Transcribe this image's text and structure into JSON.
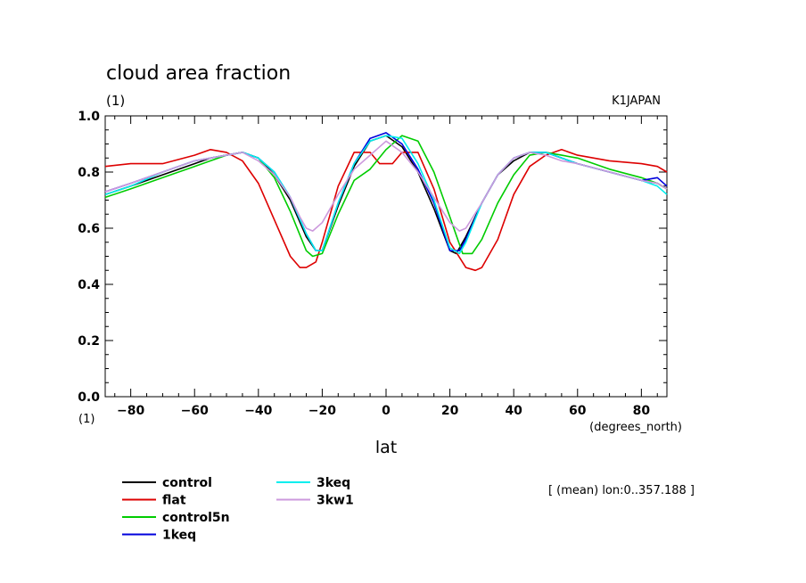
{
  "chart_data": {
    "type": "line",
    "title": "cloud area fraction",
    "y_unit": "(1)",
    "x_unit_corner": "(1)",
    "x_unit": "(degrees_north)",
    "xlabel": "lat",
    "organization": "K1JAPAN",
    "annotation": "[ (mean) lon:0..357.188 ]",
    "xlim": [
      -88,
      88
    ],
    "ylim": [
      0.0,
      1.0
    ],
    "x_ticks": [
      -80,
      -60,
      -40,
      -20,
      0,
      20,
      40,
      60,
      80
    ],
    "y_ticks": [
      "0.0",
      "0.2",
      "0.4",
      "0.6",
      "0.8",
      "1.0"
    ],
    "y_tick_values": [
      0.0,
      0.2,
      0.4,
      0.6,
      0.8,
      1.0
    ],
    "legend_placement": "bottom-left",
    "series": [
      {
        "name": "control",
        "color": "#000000",
        "x": [
          -88,
          -80,
          -70,
          -60,
          -55,
          -50,
          -45,
          -40,
          -35,
          -30,
          -25,
          -22,
          -20,
          -15,
          -10,
          -5,
          0,
          5,
          10,
          15,
          20,
          22,
          25,
          30,
          35,
          40,
          45,
          50,
          55,
          60,
          70,
          80,
          85,
          88
        ],
        "y": [
          0.72,
          0.75,
          0.79,
          0.83,
          0.85,
          0.86,
          0.87,
          0.85,
          0.79,
          0.7,
          0.57,
          0.52,
          0.52,
          0.68,
          0.82,
          0.91,
          0.93,
          0.89,
          0.8,
          0.67,
          0.52,
          0.51,
          0.57,
          0.69,
          0.79,
          0.84,
          0.87,
          0.87,
          0.85,
          0.83,
          0.8,
          0.77,
          0.76,
          0.74
        ]
      },
      {
        "name": "flat",
        "color": "#dd0000",
        "x": [
          -88,
          -80,
          -70,
          -60,
          -55,
          -50,
          -45,
          -40,
          -35,
          -30,
          -27,
          -25,
          -22,
          -20,
          -15,
          -10,
          -5,
          -2,
          2,
          5,
          10,
          15,
          20,
          25,
          28,
          30,
          35,
          40,
          45,
          50,
          55,
          60,
          70,
          80,
          85,
          88
        ],
        "y": [
          0.82,
          0.83,
          0.83,
          0.86,
          0.88,
          0.87,
          0.84,
          0.76,
          0.63,
          0.5,
          0.46,
          0.46,
          0.48,
          0.55,
          0.75,
          0.87,
          0.87,
          0.83,
          0.83,
          0.87,
          0.87,
          0.74,
          0.55,
          0.46,
          0.45,
          0.46,
          0.56,
          0.72,
          0.82,
          0.86,
          0.88,
          0.86,
          0.84,
          0.83,
          0.82,
          0.8
        ]
      },
      {
        "name": "control5n",
        "color": "#00cc00",
        "x": [
          -88,
          -80,
          -70,
          -60,
          -55,
          -50,
          -45,
          -40,
          -35,
          -30,
          -25,
          -23,
          -20,
          -15,
          -10,
          -5,
          0,
          5,
          10,
          15,
          20,
          24,
          27,
          30,
          35,
          40,
          45,
          50,
          55,
          60,
          70,
          80,
          85,
          88
        ],
        "y": [
          0.71,
          0.74,
          0.78,
          0.82,
          0.84,
          0.86,
          0.87,
          0.85,
          0.78,
          0.66,
          0.52,
          0.5,
          0.51,
          0.65,
          0.77,
          0.81,
          0.88,
          0.93,
          0.91,
          0.8,
          0.64,
          0.51,
          0.51,
          0.56,
          0.69,
          0.79,
          0.86,
          0.87,
          0.86,
          0.85,
          0.81,
          0.78,
          0.76,
          0.74
        ]
      },
      {
        "name": "1keq",
        "color": "#0000dd",
        "x": [
          -88,
          -80,
          -70,
          -60,
          -55,
          -50,
          -45,
          -40,
          -35,
          -30,
          -25,
          -22,
          -20,
          -15,
          -10,
          -5,
          0,
          5,
          10,
          15,
          20,
          23,
          25,
          30,
          35,
          40,
          45,
          50,
          55,
          60,
          70,
          80,
          85,
          88
        ],
        "y": [
          0.73,
          0.76,
          0.8,
          0.84,
          0.85,
          0.86,
          0.87,
          0.85,
          0.8,
          0.71,
          0.58,
          0.52,
          0.52,
          0.69,
          0.83,
          0.92,
          0.94,
          0.9,
          0.81,
          0.69,
          0.52,
          0.52,
          0.56,
          0.69,
          0.79,
          0.85,
          0.87,
          0.87,
          0.85,
          0.83,
          0.8,
          0.77,
          0.78,
          0.75
        ]
      },
      {
        "name": "3keq",
        "color": "#00eeee",
        "x": [
          -88,
          -80,
          -70,
          -60,
          -55,
          -50,
          -45,
          -40,
          -35,
          -30,
          -25,
          -22,
          -20,
          -15,
          -10,
          -5,
          0,
          5,
          10,
          15,
          20,
          23,
          25,
          30,
          35,
          40,
          45,
          50,
          55,
          60,
          70,
          80,
          85,
          88
        ],
        "y": [
          0.72,
          0.75,
          0.8,
          0.84,
          0.85,
          0.86,
          0.87,
          0.85,
          0.8,
          0.71,
          0.58,
          0.52,
          0.52,
          0.69,
          0.83,
          0.91,
          0.93,
          0.92,
          0.83,
          0.7,
          0.53,
          0.51,
          0.55,
          0.69,
          0.79,
          0.85,
          0.87,
          0.87,
          0.85,
          0.83,
          0.8,
          0.77,
          0.75,
          0.72
        ]
      },
      {
        "name": "3kw1",
        "color": "#cc99dd",
        "x": [
          -88,
          -80,
          -70,
          -60,
          -55,
          -50,
          -45,
          -40,
          -35,
          -30,
          -27,
          -25,
          -23,
          -20,
          -15,
          -10,
          -5,
          0,
          5,
          10,
          15,
          20,
          23,
          25,
          30,
          35,
          40,
          45,
          50,
          55,
          60,
          70,
          80,
          85,
          88
        ],
        "y": [
          0.73,
          0.76,
          0.8,
          0.84,
          0.85,
          0.86,
          0.87,
          0.84,
          0.79,
          0.71,
          0.64,
          0.6,
          0.59,
          0.62,
          0.72,
          0.81,
          0.86,
          0.91,
          0.87,
          0.8,
          0.71,
          0.62,
          0.59,
          0.6,
          0.69,
          0.79,
          0.85,
          0.87,
          0.86,
          0.84,
          0.83,
          0.8,
          0.77,
          0.76,
          0.74
        ]
      }
    ]
  }
}
